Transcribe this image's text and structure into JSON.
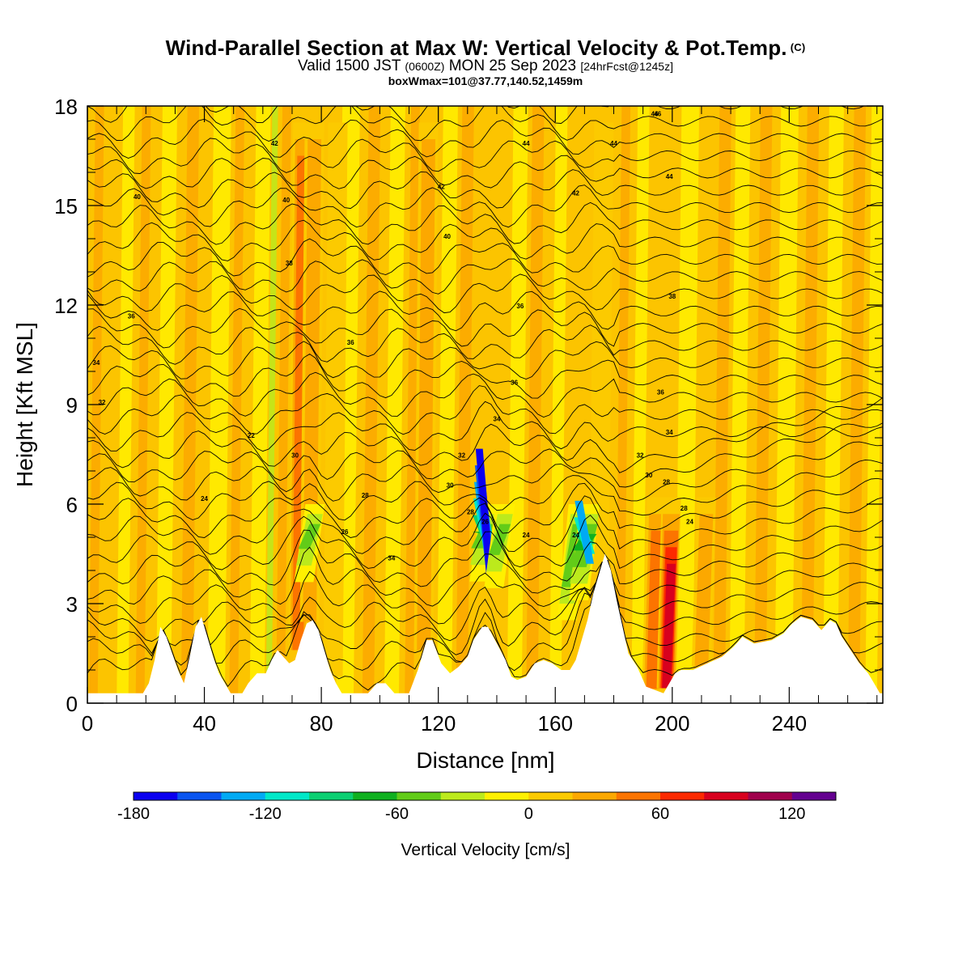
{
  "title": {
    "line1": "Wind-Parallel Section at Max W: Vertical Velocity & Pot.Temp.",
    "line1_mark": "(C)",
    "line2_a": "Valid 1500 JST",
    "line2_b": "(0600Z)",
    "line2_c": "MON 25 Sep 2023",
    "line2_d": "[24hrFcst@1245z]",
    "line3": "boxWmax=101@37.77,140.52,1459m"
  },
  "chart_data": {
    "type": "heatmap",
    "xlabel": "Distance [nm]",
    "ylabel": "Height [Kft MSL]",
    "xlim": [
      0,
      272
    ],
    "ylim": [
      0,
      18
    ],
    "xticks": [
      "0",
      "40",
      "80",
      "120",
      "160",
      "200",
      "240"
    ],
    "yticks": [
      "0",
      "3",
      "6",
      "9",
      "12",
      "15",
      "18"
    ],
    "colorbar": {
      "title": "Vertical Velocity [cm/s]",
      "range": [
        -180,
        140
      ],
      "step": 20,
      "tick_labels": [
        "-180",
        "-120",
        "-60",
        "0",
        "60",
        "120"
      ],
      "colors": [
        "#0b00f0",
        "#0a55f0",
        "#00aaf4",
        "#00e8c8",
        "#0ccf72",
        "#10b020",
        "#62cc18",
        "#bcea1c",
        "#fff000",
        "#fcca00",
        "#fca800",
        "#fc7400",
        "#fc2a00",
        "#d8001e",
        "#a0004c",
        "#640090"
      ]
    },
    "updrafts": [
      {
        "x": 72,
        "value": 70
      },
      {
        "x": 76,
        "value": 45
      },
      {
        "x": 84,
        "value": 30
      },
      {
        "x": 115,
        "value": 40
      },
      {
        "x": 175,
        "value": 30
      },
      {
        "x": 193,
        "value": 60
      },
      {
        "x": 198,
        "value": 101
      },
      {
        "x": 210,
        "value": 50
      }
    ],
    "downdrafts": [
      {
        "x": 74,
        "value": -60
      },
      {
        "x": 134,
        "value": -180
      },
      {
        "x": 139,
        "value": -60
      },
      {
        "x": 164,
        "value": -70
      },
      {
        "x": 168,
        "value": -140
      }
    ],
    "isentropes_c": [
      "22",
      "24",
      "26",
      "28",
      "30",
      "32",
      "34",
      "36",
      "38",
      "40",
      "42",
      "44",
      "46"
    ],
    "terrain_kft": [
      [
        0,
        0.3
      ],
      [
        19,
        0.3
      ],
      [
        21,
        0.6
      ],
      [
        23,
        1.3
      ],
      [
        25,
        2.3
      ],
      [
        27,
        2.0
      ],
      [
        29,
        1.5
      ],
      [
        31,
        1.0
      ],
      [
        33,
        0.6
      ],
      [
        35,
        1.4
      ],
      [
        37,
        2.3
      ],
      [
        39,
        2.6
      ],
      [
        41,
        2.0
      ],
      [
        43,
        1.4
      ],
      [
        45,
        0.9
      ],
      [
        47,
        0.6
      ],
      [
        49,
        0.3
      ],
      [
        53,
        0.3
      ],
      [
        55,
        0.6
      ],
      [
        58,
        0.9
      ],
      [
        61,
        0.9
      ],
      [
        63,
        1.3
      ],
      [
        65,
        1.6
      ],
      [
        67,
        1.4
      ],
      [
        69,
        1.2
      ],
      [
        71,
        1.3
      ],
      [
        73,
        1.9
      ],
      [
        75,
        2.4
      ],
      [
        77,
        2.5
      ],
      [
        79,
        2.2
      ],
      [
        81,
        1.6
      ],
      [
        83,
        1.0
      ],
      [
        85,
        0.6
      ],
      [
        87,
        0.3
      ],
      [
        96,
        0.3
      ],
      [
        99,
        0.6
      ],
      [
        102,
        0.6
      ],
      [
        105,
        0.3
      ],
      [
        110,
        0.3
      ],
      [
        113,
        1.0
      ],
      [
        116,
        1.9
      ],
      [
        118,
        1.9
      ],
      [
        121,
        1.2
      ],
      [
        124,
        0.9
      ],
      [
        127,
        1.1
      ],
      [
        130,
        1.4
      ],
      [
        132,
        1.9
      ],
      [
        135,
        2.3
      ],
      [
        137,
        2.3
      ],
      [
        140,
        1.8
      ],
      [
        143,
        1.3
      ],
      [
        145,
        0.8
      ],
      [
        147,
        0.7
      ],
      [
        150,
        0.8
      ],
      [
        153,
        1.2
      ],
      [
        156,
        1.3
      ],
      [
        159,
        1.2
      ],
      [
        162,
        1.0
      ],
      [
        165,
        1.0
      ],
      [
        167,
        1.3
      ],
      [
        169,
        1.9
      ],
      [
        171,
        2.5
      ],
      [
        173,
        3.3
      ],
      [
        175,
        3.9
      ],
      [
        177,
        4.5
      ],
      [
        179,
        4.0
      ],
      [
        181,
        3.1
      ],
      [
        183,
        2.3
      ],
      [
        185,
        1.5
      ],
      [
        188,
        1.1
      ],
      [
        191,
        0.5
      ],
      [
        194,
        0.4
      ],
      [
        197,
        0.3
      ],
      [
        199,
        0.6
      ],
      [
        201,
        0.9
      ],
      [
        203,
        1.0
      ],
      [
        207,
        1.0
      ],
      [
        212,
        1.2
      ],
      [
        217,
        1.4
      ],
      [
        221,
        1.7
      ],
      [
        224,
        2.0
      ],
      [
        228,
        1.8
      ],
      [
        234,
        1.9
      ],
      [
        238,
        2.1
      ],
      [
        241,
        2.4
      ],
      [
        244,
        2.6
      ],
      [
        248,
        2.5
      ],
      [
        251,
        2.2
      ],
      [
        254,
        2.5
      ],
      [
        256,
        2.4
      ],
      [
        258,
        2.0
      ],
      [
        261,
        1.6
      ],
      [
        264,
        1.2
      ],
      [
        267,
        0.9
      ],
      [
        269,
        0.6
      ],
      [
        271,
        0.3
      ],
      [
        272,
        0.3
      ]
    ]
  },
  "colors": {
    "background": "#fcc400",
    "axes": "#000000"
  }
}
